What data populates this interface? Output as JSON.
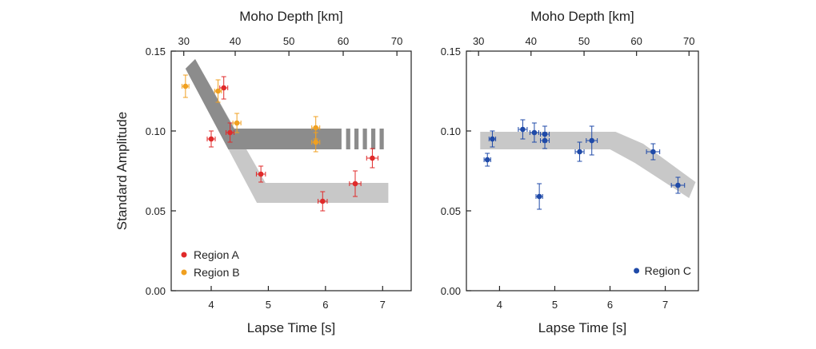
{
  "colors": {
    "region_a": "#e02a2a",
    "region_b": "#f0a020",
    "region_c": "#1f4aa8",
    "band_dark": "#8c8c8c",
    "band_light": "#c8c8c8",
    "axis": "#222222"
  },
  "chart_data": [
    {
      "type": "scatter",
      "panel": "left",
      "xlabel": "Lapse Time [s]",
      "ylabel": "Standard Amplitude",
      "top_axis_label": "Moho Depth [km]",
      "xlim": [
        3.3,
        7.5
      ],
      "ylim": [
        0.0,
        0.15
      ],
      "xticks": [
        4,
        5,
        6,
        7
      ],
      "xtick_labels": [
        "4",
        "5",
        "6",
        "7"
      ],
      "yticks": [
        0.0,
        0.05,
        0.1,
        0.15
      ],
      "ytick_labels": [
        "0.00",
        "0.05",
        "0.10",
        "0.15"
      ],
      "top_ticks": [
        30,
        40,
        50,
        60,
        70
      ],
      "top_tick_labels": [
        "30",
        "40",
        "50",
        "60",
        "70"
      ],
      "top_tick_lapse_time": [
        3.52,
        4.42,
        5.36,
        6.31,
        7.25
      ],
      "legend_position": "bottom-left",
      "series": [
        {
          "name": "Region A",
          "color_key": "region_a",
          "points": [
            {
              "x": 4.0,
              "y": 0.095,
              "xerr": 0.07,
              "yerr": 0.005
            },
            {
              "x": 4.22,
              "y": 0.127,
              "xerr": 0.07,
              "yerr": 0.007
            },
            {
              "x": 4.33,
              "y": 0.099,
              "xerr": 0.07,
              "yerr": 0.006
            },
            {
              "x": 4.87,
              "y": 0.073,
              "xerr": 0.08,
              "yerr": 0.005
            },
            {
              "x": 5.95,
              "y": 0.056,
              "xerr": 0.08,
              "yerr": 0.006
            },
            {
              "x": 6.52,
              "y": 0.067,
              "xerr": 0.1,
              "yerr": 0.008
            },
            {
              "x": 6.82,
              "y": 0.083,
              "xerr": 0.1,
              "yerr": 0.006
            }
          ]
        },
        {
          "name": "Region B",
          "color_key": "region_b",
          "points": [
            {
              "x": 3.55,
              "y": 0.128,
              "xerr": 0.06,
              "yerr": 0.007
            },
            {
              "x": 4.12,
              "y": 0.125,
              "xerr": 0.06,
              "yerr": 0.007
            },
            {
              "x": 4.45,
              "y": 0.105,
              "xerr": 0.07,
              "yerr": 0.006
            },
            {
              "x": 5.83,
              "y": 0.102,
              "xerr": 0.07,
              "yerr": 0.007
            },
            {
              "x": 5.83,
              "y": 0.093,
              "xerr": 0.07,
              "yerr": 0.006
            }
          ]
        }
      ],
      "bands": [
        {
          "color_key": "band_light",
          "points": [
            [
              3.55,
              0.139
            ],
            [
              3.72,
              0.145
            ],
            [
              4.95,
              0.0675
            ],
            [
              7.1,
              0.0675
            ],
            [
              7.1,
              0.055
            ],
            [
              4.8,
              0.055
            ]
          ]
        },
        {
          "color_key": "band_dark",
          "points": [
            [
              3.55,
              0.139
            ],
            [
              3.72,
              0.145
            ],
            [
              4.4,
              0.1015
            ],
            [
              6.28,
              0.1015
            ],
            [
              6.28,
              0.0885
            ],
            [
              4.4,
              0.0885
            ],
            [
              4.3,
              0.0885
            ]
          ]
        }
      ],
      "dashed_band": {
        "color_key": "band_dark",
        "x_start": 6.36,
        "x_end": 7.02,
        "y_low": 0.0885,
        "y_high": 0.1015,
        "segments": 5
      }
    },
    {
      "type": "scatter",
      "panel": "right",
      "xlabel": "Lapse Time [s]",
      "top_axis_label": "Moho Depth [km]",
      "xlim": [
        3.4,
        7.6
      ],
      "ylim": [
        0.0,
        0.15
      ],
      "xticks": [
        4,
        5,
        6,
        7
      ],
      "xtick_labels": [
        "4",
        "5",
        "6",
        "7"
      ],
      "yticks": [
        0.0,
        0.05,
        0.1,
        0.15
      ],
      "ytick_labels": [
        "0.00",
        "0.05",
        "0.10",
        "0.15"
      ],
      "top_ticks": [
        30,
        40,
        50,
        60,
        70
      ],
      "top_tick_labels": [
        "30",
        "40",
        "50",
        "60",
        "70"
      ],
      "top_tick_lapse_time": [
        3.62,
        4.57,
        5.53,
        6.48,
        7.43
      ],
      "legend_position": "bottom-right",
      "series": [
        {
          "name": "Region C",
          "color_key": "region_c",
          "points": [
            {
              "x": 3.78,
              "y": 0.082,
              "xerr": 0.06,
              "yerr": 0.004
            },
            {
              "x": 3.87,
              "y": 0.095,
              "xerr": 0.06,
              "yerr": 0.005
            },
            {
              "x": 4.42,
              "y": 0.101,
              "xerr": 0.08,
              "yerr": 0.006
            },
            {
              "x": 4.63,
              "y": 0.099,
              "xerr": 0.08,
              "yerr": 0.006
            },
            {
              "x": 4.72,
              "y": 0.059,
              "xerr": 0.06,
              "yerr": 0.008
            },
            {
              "x": 4.82,
              "y": 0.098,
              "xerr": 0.08,
              "yerr": 0.005
            },
            {
              "x": 4.82,
              "y": 0.094,
              "xerr": 0.08,
              "yerr": 0.005
            },
            {
              "x": 5.45,
              "y": 0.087,
              "xerr": 0.08,
              "yerr": 0.006
            },
            {
              "x": 5.67,
              "y": 0.094,
              "xerr": 0.1,
              "yerr": 0.009
            },
            {
              "x": 6.78,
              "y": 0.087,
              "xerr": 0.12,
              "yerr": 0.005
            },
            {
              "x": 7.23,
              "y": 0.066,
              "xerr": 0.12,
              "yerr": 0.005
            }
          ]
        }
      ],
      "bands": [
        {
          "color_key": "band_light",
          "points": [
            [
              3.65,
              0.0995
            ],
            [
              6.1,
              0.0995
            ],
            [
              6.6,
              0.092
            ],
            [
              7.55,
              0.068
            ],
            [
              7.43,
              0.058
            ],
            [
              6.45,
              0.08
            ],
            [
              6.0,
              0.0885
            ],
            [
              3.65,
              0.0885
            ]
          ]
        }
      ]
    }
  ]
}
